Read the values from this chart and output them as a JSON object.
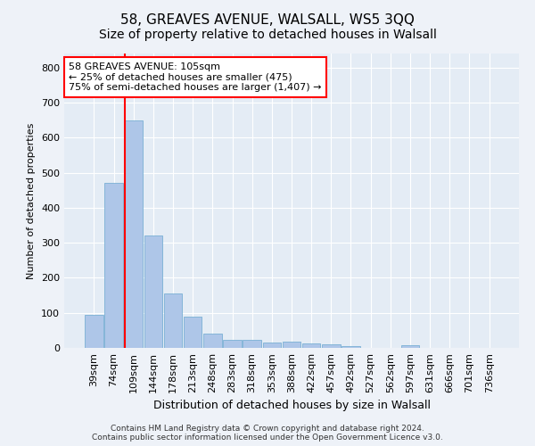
{
  "title1": "58, GREAVES AVENUE, WALSALL, WS5 3QQ",
  "title2": "Size of property relative to detached houses in Walsall",
  "xlabel": "Distribution of detached houses by size in Walsall",
  "ylabel": "Number of detached properties",
  "categories": [
    "39sqm",
    "74sqm",
    "109sqm",
    "144sqm",
    "178sqm",
    "213sqm",
    "248sqm",
    "283sqm",
    "318sqm",
    "353sqm",
    "388sqm",
    "422sqm",
    "457sqm",
    "492sqm",
    "527sqm",
    "562sqm",
    "597sqm",
    "631sqm",
    "666sqm",
    "701sqm",
    "736sqm"
  ],
  "values": [
    93,
    470,
    648,
    320,
    155,
    88,
    40,
    22,
    22,
    15,
    17,
    13,
    10,
    6,
    0,
    0,
    7,
    0,
    0,
    0,
    0
  ],
  "bar_color": "#aec6e8",
  "bar_edgecolor": "#7ab0d4",
  "annotation_text": "58 GREAVES AVENUE: 105sqm\n← 25% of detached houses are smaller (475)\n75% of semi-detached houses are larger (1,407) →",
  "annotation_box_color": "white",
  "annotation_box_edgecolor": "red",
  "vline_color": "red",
  "vline_x": 1.575,
  "ylim": [
    0,
    840
  ],
  "yticks": [
    0,
    100,
    200,
    300,
    400,
    500,
    600,
    700,
    800
  ],
  "footer1": "Contains HM Land Registry data © Crown copyright and database right 2024.",
  "footer2": "Contains public sector information licensed under the Open Government Licence v3.0.",
  "bg_color": "#eef2f8",
  "plot_bg_color": "#e4ecf5",
  "grid_color": "white",
  "title1_fontsize": 11,
  "title2_fontsize": 10,
  "ylabel_fontsize": 8,
  "xlabel_fontsize": 9,
  "tick_fontsize": 8,
  "annot_fontsize": 8
}
